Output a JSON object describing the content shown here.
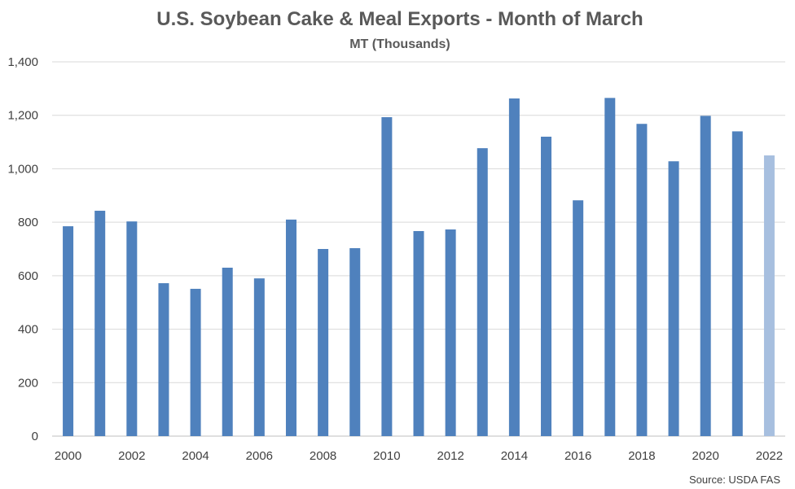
{
  "chart_data": {
    "type": "bar",
    "title": "U.S. Soybean Cake & Meal Exports - Month of March",
    "subtitle": "MT (Thousands)",
    "source": "Source: USDA FAS",
    "categories": [
      "2000",
      "2001",
      "2002",
      "2003",
      "2004",
      "2005",
      "2006",
      "2007",
      "2008",
      "2009",
      "2010",
      "2011",
      "2012",
      "2013",
      "2014",
      "2015",
      "2016",
      "2017",
      "2018",
      "2019",
      "2020",
      "2021",
      "2022"
    ],
    "x_tick_labels": [
      "2000",
      "2002",
      "2004",
      "2006",
      "2008",
      "2010",
      "2012",
      "2014",
      "2016",
      "2018",
      "2020",
      "2022"
    ],
    "values": [
      785,
      843,
      803,
      572,
      551,
      630,
      590,
      810,
      700,
      703,
      1193,
      767,
      773,
      1077,
      1263,
      1120,
      882,
      1265,
      1168,
      1028,
      1198,
      1140,
      1050
    ],
    "y_ticks": [
      "0",
      "200",
      "400",
      "600",
      "800",
      "1,000",
      "1,200",
      "1,400"
    ],
    "ylim": [
      0,
      1400
    ],
    "grid": true,
    "colors": {
      "bar": "#4f81bd",
      "highlight": "#a7bfdf",
      "grid": "#d9d9d9"
    },
    "highlight_category": "2022"
  }
}
